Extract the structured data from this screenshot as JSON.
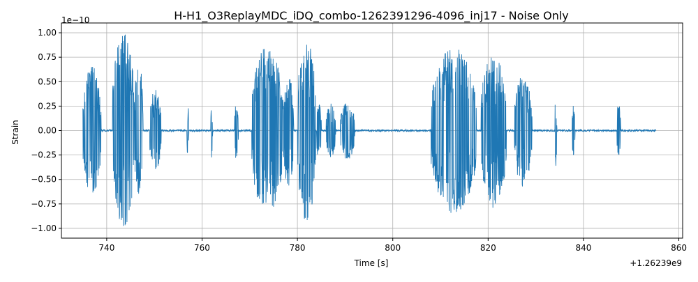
{
  "chart_data": {
    "type": "line",
    "title": "H-H1_O3ReplayMDC_iDQ_combo-1262391296-4096_inj17 - Noise Only",
    "xlabel": "Time [s]",
    "ylabel": "Strain",
    "x_offset_label": "+1.26239e9",
    "y_scale_label": "1e−10",
    "xlim": [
      730.5,
      860.8
    ],
    "ylim": [
      -1.1,
      1.1
    ],
    "grid": true,
    "line_color": "#1f77b4",
    "x_ticks": [
      740,
      760,
      780,
      800,
      820,
      840,
      860
    ],
    "x_tick_labels": [
      "740",
      "760",
      "780",
      "800",
      "820",
      "840",
      "860"
    ],
    "y_ticks": [
      -1.0,
      -0.75,
      -0.5,
      -0.25,
      0.0,
      0.25,
      0.5,
      0.75,
      1.0
    ],
    "y_tick_labels": [
      "−1.00",
      "−0.75",
      "−0.50",
      "−0.25",
      "0.00",
      "0.25",
      "0.50",
      "0.75",
      "1.00"
    ],
    "series": [
      {
        "t_start": 735.0,
        "t_end": 855.2,
        "bursts": [
          {
            "t0": 735.0,
            "t1": 738.8,
            "amp": 0.66
          },
          {
            "t0": 741.2,
            "t1": 745.8,
            "amp": 1.0
          },
          {
            "t0": 745.8,
            "t1": 747.6,
            "amp": 0.72
          },
          {
            "t0": 749.0,
            "t1": 751.4,
            "amp": 0.42
          },
          {
            "t0": 756.8,
            "t1": 757.2,
            "amp": 0.3
          },
          {
            "t0": 761.8,
            "t1": 762.2,
            "amp": 0.28
          },
          {
            "t0": 766.8,
            "t1": 767.6,
            "amp": 0.3
          },
          {
            "t0": 770.4,
            "t1": 777.0,
            "amp": 0.86
          },
          {
            "t0": 777.0,
            "t1": 779.2,
            "amp": 0.58
          },
          {
            "t0": 780.0,
            "t1": 783.8,
            "amp": 0.93
          },
          {
            "t0": 784.0,
            "t1": 785.0,
            "amp": 0.3
          },
          {
            "t0": 786.0,
            "t1": 788.0,
            "amp": 0.28
          },
          {
            "t0": 789.0,
            "t1": 792.0,
            "amp": 0.3
          },
          {
            "t0": 808.0,
            "t1": 817.5,
            "amp": 0.85
          },
          {
            "t0": 818.5,
            "t1": 823.8,
            "amp": 0.8
          },
          {
            "t0": 825.5,
            "t1": 829.2,
            "amp": 0.58
          },
          {
            "t0": 834.0,
            "t1": 834.4,
            "amp": 0.38
          },
          {
            "t0": 837.6,
            "t1": 838.2,
            "amp": 0.28
          },
          {
            "t0": 847.0,
            "t1": 847.8,
            "amp": 0.3
          }
        ],
        "noise_floor": 0.01
      }
    ]
  }
}
